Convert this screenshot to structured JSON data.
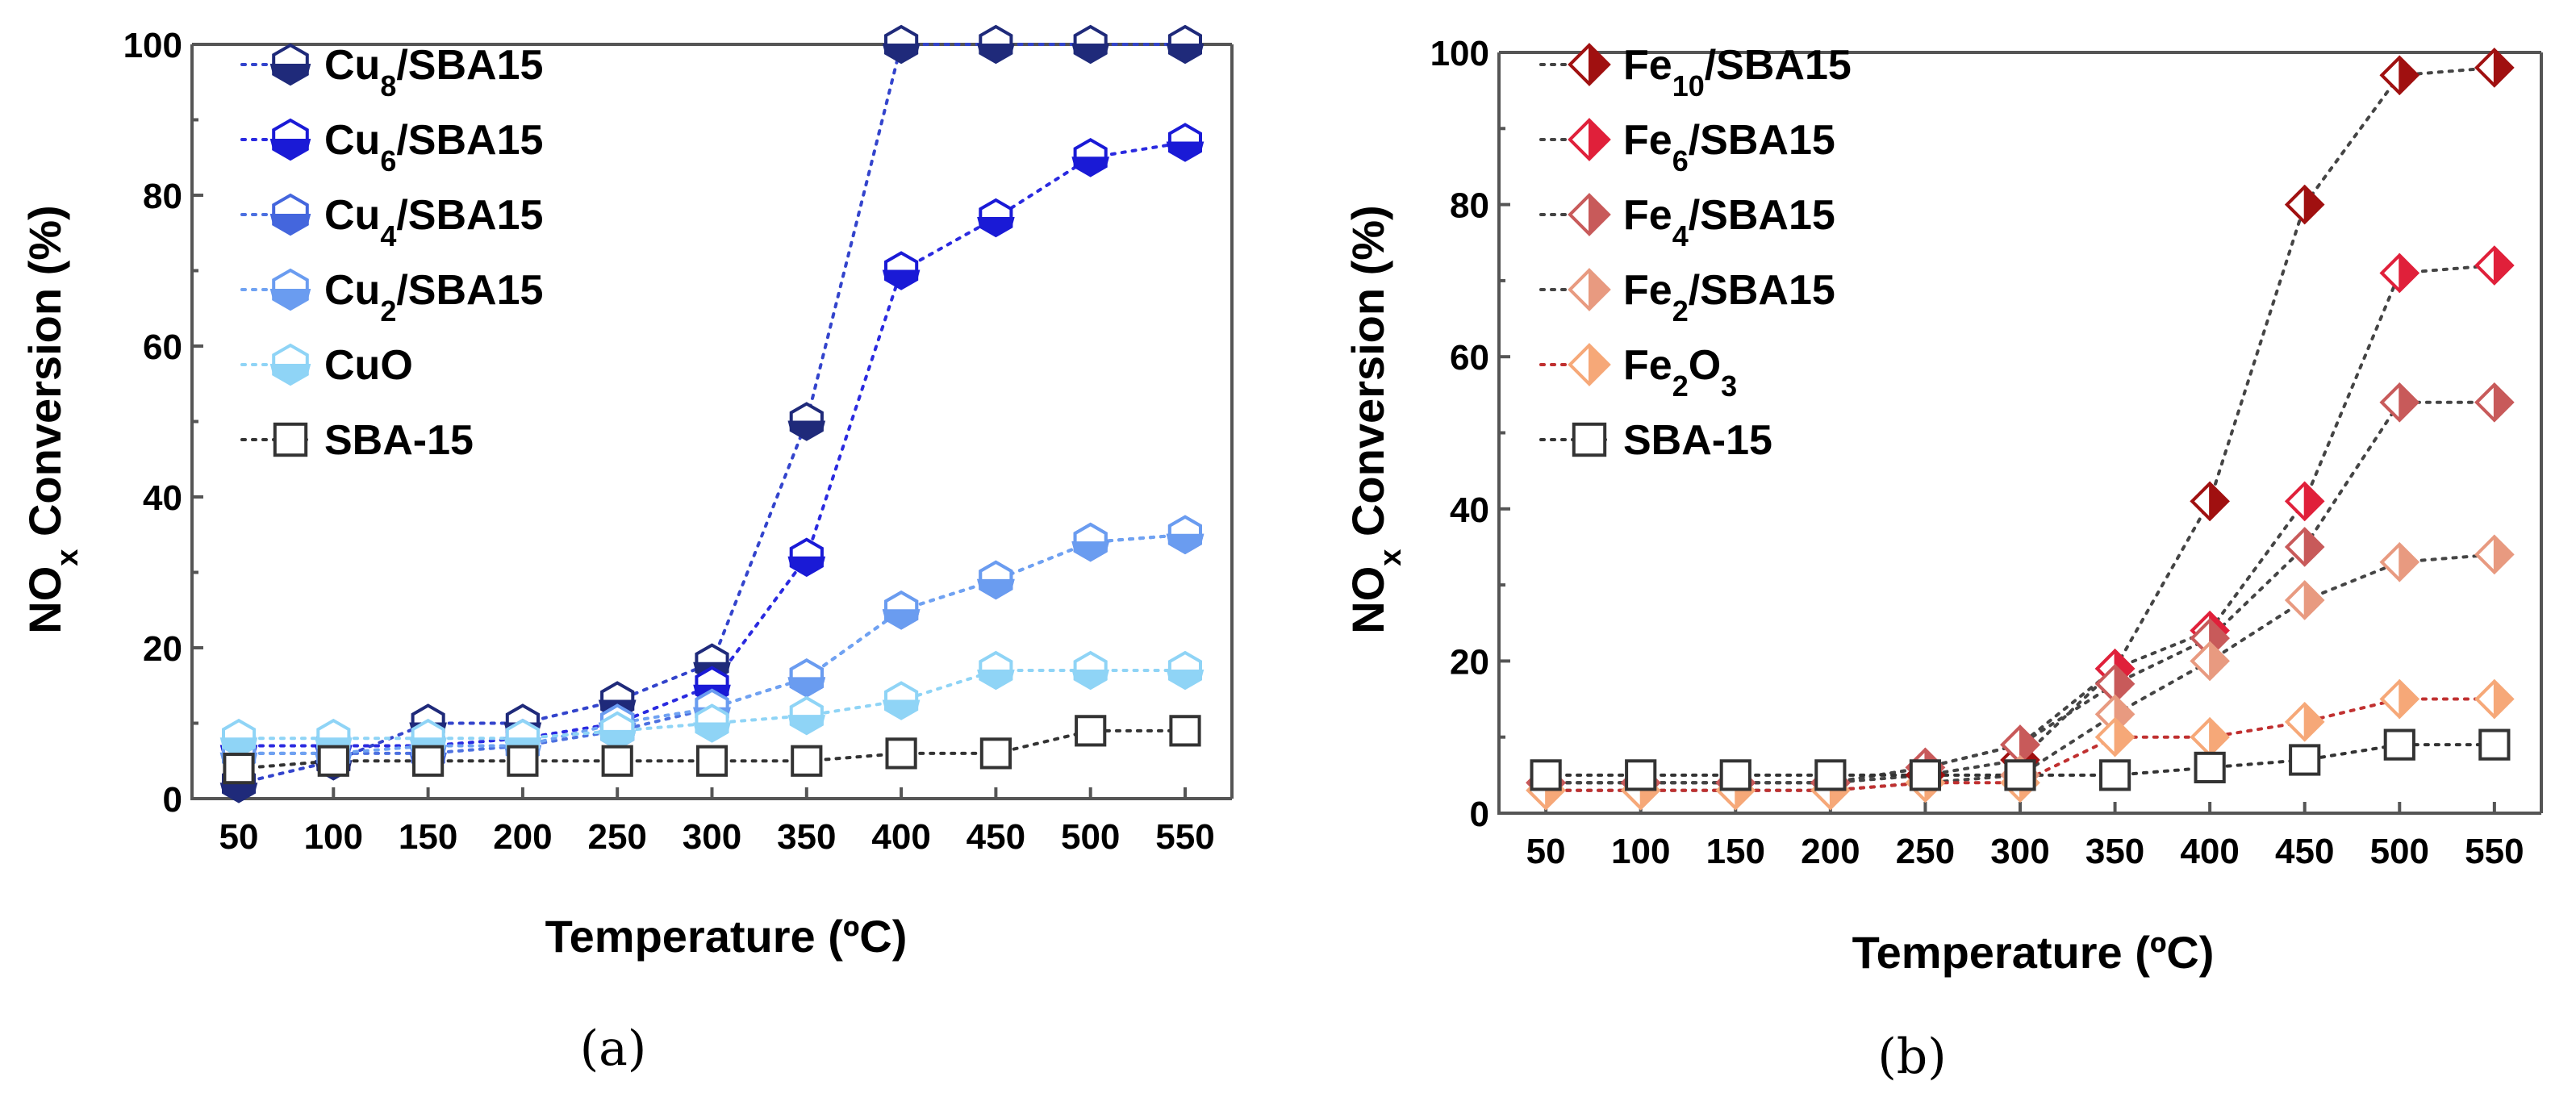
{
  "chart_data": [
    {
      "id": "a",
      "type": "line",
      "panel_label": "(a)",
      "xlabel": "Temperature (ºC)",
      "ylabel": "NO",
      "ylabel_sub": "x",
      "ylabel_rest": " Conversion (%)",
      "ylim": [
        0,
        100
      ],
      "yticks": [
        0,
        20,
        40,
        60,
        80,
        100
      ],
      "x": [
        50,
        100,
        150,
        200,
        250,
        300,
        350,
        400,
        450,
        500,
        550
      ],
      "legend_position": "top-left",
      "series": [
        {
          "name": "Cu8/SBA15",
          "label_main": "Cu",
          "label_sub": "8",
          "label_rest": "/SBA15",
          "marker": "hexagon",
          "color": "#1f2a7a",
          "line_color": "#3344cc",
          "values": [
            2,
            5,
            10,
            10,
            13,
            18,
            50,
            100,
            100,
            100,
            100
          ]
        },
        {
          "name": "Cu6/SBA15",
          "label_main": "Cu",
          "label_sub": "6",
          "label_rest": "/SBA15",
          "marker": "hexagon",
          "color": "#1a1ad6",
          "line_color": "#2a2ae0",
          "values": [
            7,
            7,
            7,
            8,
            10,
            15,
            32,
            70,
            77,
            85,
            87
          ]
        },
        {
          "name": "Cu4/SBA15",
          "label_main": "Cu",
          "label_sub": "4",
          "label_rest": "/SBA15",
          "marker": "hexagon",
          "color": "#4466dd",
          "line_color": "#4c70e0",
          "values": [
            6,
            6,
            6,
            7,
            9,
            12,
            16,
            25,
            29,
            34,
            35
          ]
        },
        {
          "name": "Cu2/SBA15",
          "label_main": "Cu",
          "label_sub": "2",
          "label_rest": "/SBA15",
          "marker": "hexagon",
          "color": "#6a9cf0",
          "line_color": "#6fa2f2",
          "values": [
            6,
            6,
            7,
            7,
            10,
            12,
            16,
            25,
            29,
            34,
            35
          ]
        },
        {
          "name": "CuO",
          "label_main": "CuO",
          "label_sub": "",
          "label_rest": "",
          "marker": "hexagon",
          "color": "#8fd4f6",
          "line_color": "#8fd4f6",
          "values": [
            8,
            8,
            8,
            8,
            9,
            10,
            11,
            13,
            17,
            17,
            17
          ]
        },
        {
          "name": "SBA-15",
          "label_main": "SBA-15",
          "label_sub": "",
          "label_rest": "",
          "marker": "square",
          "color": "#333333",
          "line_color": "#333333",
          "values": [
            4,
            5,
            5,
            5,
            5,
            5,
            5,
            6,
            6,
            9,
            9
          ]
        }
      ]
    },
    {
      "id": "b",
      "type": "line",
      "panel_label": "(b)",
      "xlabel": "Temperature (ºC)",
      "ylabel": "NO",
      "ylabel_sub": "x",
      "ylabel_rest": " Conversion (%)",
      "ylim": [
        0,
        100
      ],
      "yticks": [
        0,
        20,
        40,
        60,
        80,
        100
      ],
      "x": [
        50,
        100,
        150,
        200,
        250,
        300,
        350,
        400,
        450,
        500,
        550
      ],
      "legend_position": "top-left",
      "series": [
        {
          "name": "Fe10/SBA15",
          "label_main": "Fe",
          "label_sub": "10",
          "label_rest": "/SBA15",
          "marker": "diamond",
          "color": "#a01010",
          "line_color": "#444444",
          "values": [
            4,
            4,
            4,
            4,
            5,
            7,
            19,
            41,
            80,
            97,
            98
          ]
        },
        {
          "name": "Fe6/SBA15",
          "label_main": "Fe",
          "label_sub": "6",
          "label_rest": "/SBA15",
          "marker": "diamond",
          "color": "#e0203a",
          "line_color": "#444444",
          "values": [
            4,
            4,
            4,
            4,
            6,
            9,
            19,
            24,
            41,
            71,
            72
          ]
        },
        {
          "name": "Fe4/SBA15",
          "label_main": "Fe",
          "label_sub": "4",
          "label_rest": "/SBA15",
          "marker": "diamond",
          "color": "#c85a5a",
          "line_color": "#444444",
          "values": [
            4,
            4,
            4,
            4,
            6,
            9,
            17,
            23,
            35,
            54,
            54
          ]
        },
        {
          "name": "Fe2/SBA15",
          "label_main": "Fe",
          "label_sub": "2",
          "label_rest": "/SBA15",
          "marker": "diamond",
          "color": "#e89a80",
          "line_color": "#444444",
          "values": [
            3,
            3,
            3,
            3,
            4,
            5,
            13,
            20,
            28,
            33,
            34
          ]
        },
        {
          "name": "Fe2O3",
          "label_main": "Fe",
          "label_sub": "2",
          "label_rest": "O",
          "label_sub2": "3",
          "marker": "diamond",
          "color": "#f6a878",
          "line_color": "#c03030",
          "values": [
            3,
            3,
            3,
            3,
            4,
            4,
            10,
            10,
            12,
            15,
            15
          ]
        },
        {
          "name": "SBA-15",
          "label_main": "SBA-15",
          "label_sub": "",
          "label_rest": "",
          "marker": "square",
          "color": "#333333",
          "line_color": "#333333",
          "values": [
            5,
            5,
            5,
            5,
            5,
            5,
            5,
            6,
            7,
            9,
            9
          ]
        }
      ]
    }
  ]
}
